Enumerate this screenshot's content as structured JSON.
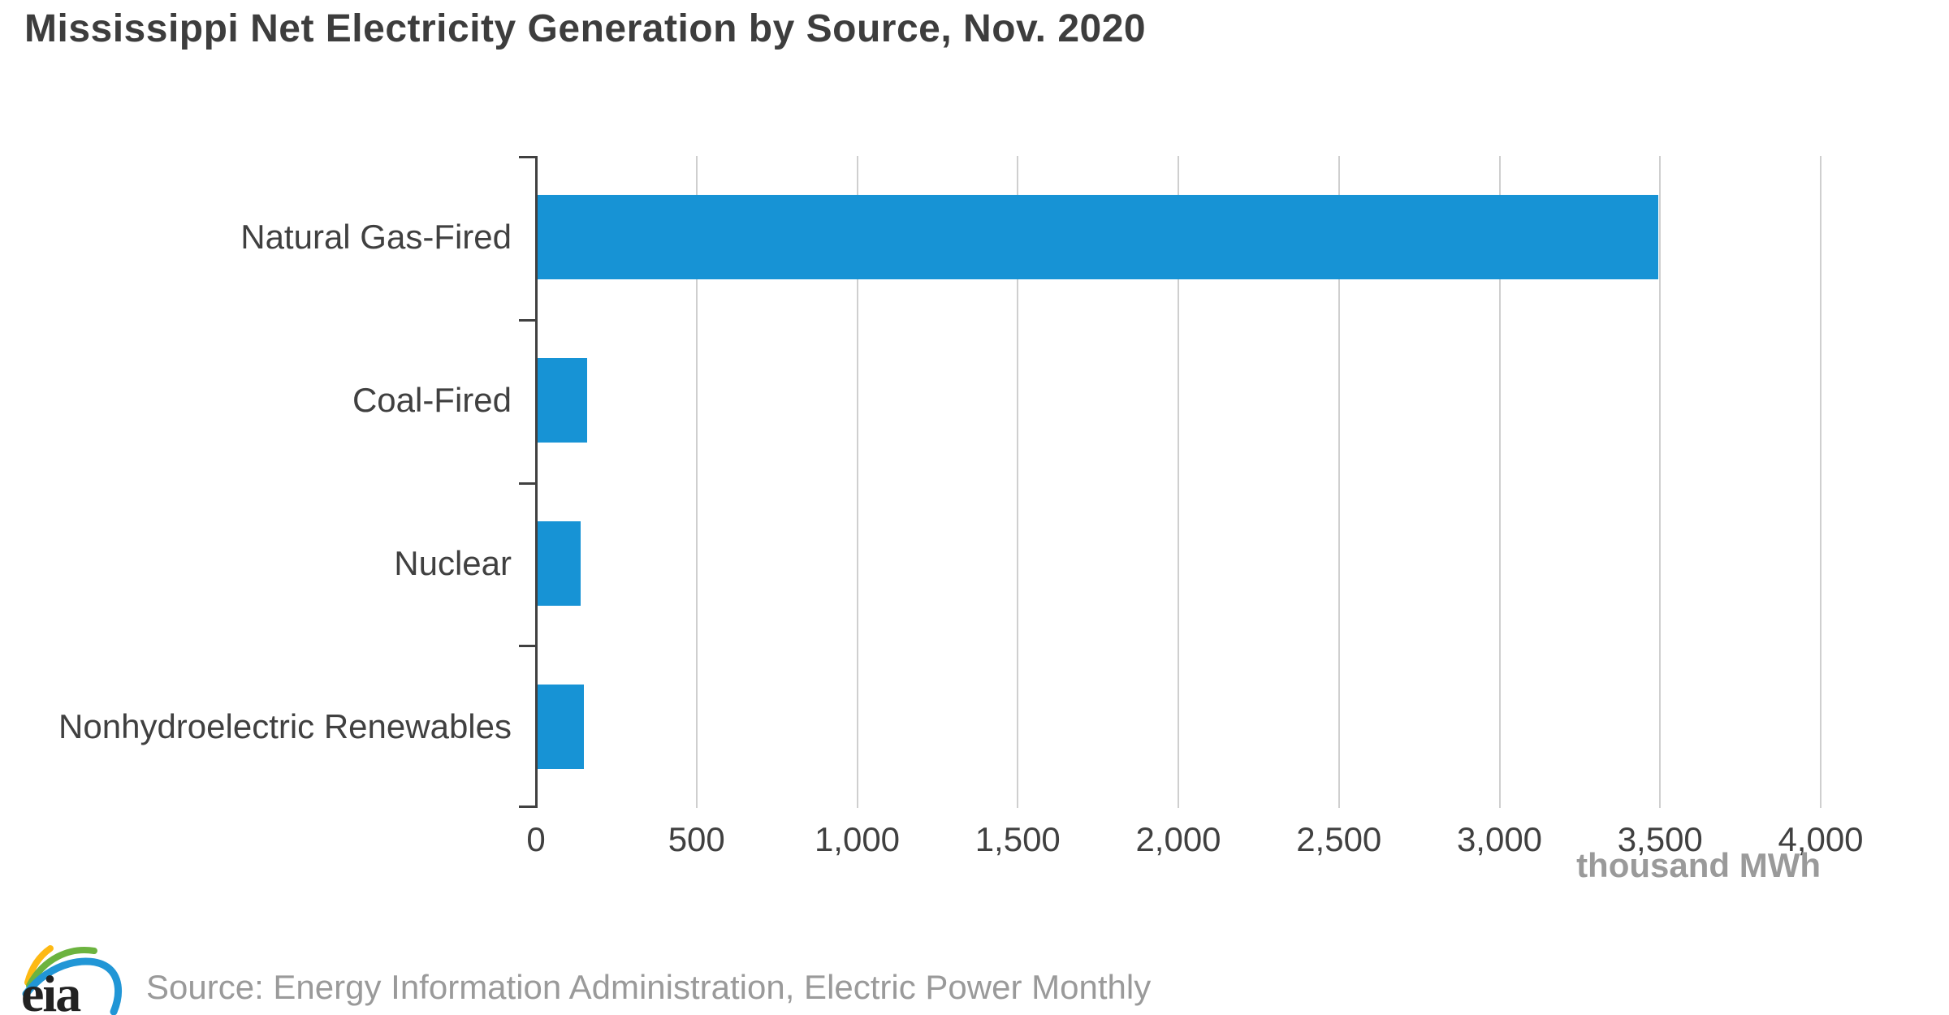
{
  "title": "Mississippi Net Electricity Generation by Source, Nov. 2020",
  "chart_data": {
    "type": "bar",
    "orientation": "horizontal",
    "title": "Mississippi Net Electricity Generation by Source, Nov. 2020",
    "categories": [
      "Natural Gas-Fired",
      "Coal-Fired",
      "Nuclear",
      "Nonhydroelectric Renewables"
    ],
    "values": [
      3490,
      155,
      135,
      145
    ],
    "xlabel": "thousand MWh",
    "ylabel": "",
    "xlim": [
      0,
      4000
    ],
    "x_ticks": [
      0,
      500,
      1000,
      1500,
      2000,
      2500,
      3000,
      3500,
      4000
    ],
    "x_tick_labels": [
      "0",
      "500",
      "1,000",
      "1,500",
      "2,000",
      "2,500",
      "3,000",
      "3,500",
      "4,000"
    ],
    "grid": true,
    "legend": "none",
    "bar_color": "#1793d5"
  },
  "footer": {
    "logo_text": "eia",
    "source": "Source: Energy Information Administration, Electric Power Monthly"
  },
  "colors": {
    "bar": "#1793d5",
    "title_text": "#3d3d3d",
    "axis_text": "#404040",
    "muted_text": "#9a9a9a",
    "gridline": "#cfcfcf",
    "axis_line": "#404040"
  }
}
